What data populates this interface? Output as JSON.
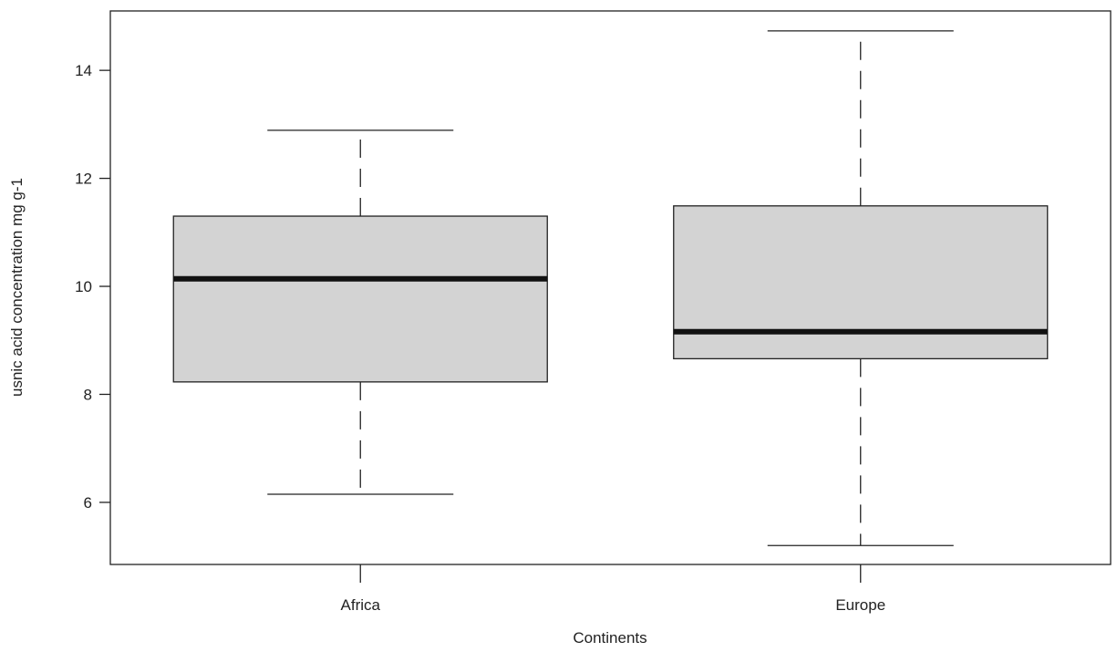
{
  "chart_data": {
    "type": "boxplot",
    "title": "",
    "xlabel": "Continents",
    "ylabel": "usnic acid concentration mg g-1",
    "ylim": [
      4.85,
      15.1
    ],
    "yticks": [
      6,
      8,
      10,
      12,
      14
    ],
    "ytick_labels": [
      "6",
      "8",
      "10",
      "12",
      "14"
    ],
    "grid": false,
    "legend": "none",
    "categories": [
      "Africa",
      "Europe"
    ],
    "boxes": [
      {
        "category": "Africa",
        "whisker_low": 6.15,
        "q1": 8.23,
        "median": 10.14,
        "q3": 11.3,
        "whisker_high": 12.89
      },
      {
        "category": "Europe",
        "whisker_low": 5.2,
        "q1": 8.66,
        "median": 9.16,
        "q3": 11.49,
        "whisker_high": 14.73
      }
    ],
    "colors": {
      "box_fill": "#d3d3d3",
      "line": "#222222",
      "median": "#111111"
    }
  }
}
